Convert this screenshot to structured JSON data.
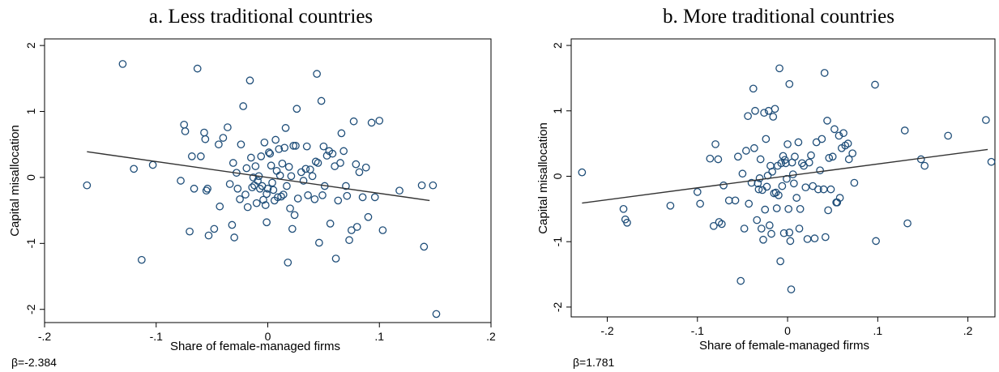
{
  "colors": {
    "marker": "#1f4e79",
    "fit_line": "#333333",
    "axis": "#000000"
  },
  "chart_data": [
    {
      "type": "scatter",
      "title": "a. Less traditional countries",
      "xlabel": "Share of female-managed firms",
      "ylabel": "Capital misallocation",
      "annotation": "β=-2.384",
      "xlim": [
        -0.2,
        0.2
      ],
      "ylim": [
        -2.2,
        2.1
      ],
      "xticks": [
        -0.2,
        -0.1,
        0,
        0.1,
        0.2
      ],
      "xtick_labels": [
        "-.2",
        "-.1",
        "0",
        ".1",
        ".2"
      ],
      "yticks": [
        -2,
        -1,
        0,
        1,
        2
      ],
      "ytick_labels": [
        "-2",
        "-1",
        "0",
        "1",
        "2"
      ],
      "grid": false,
      "fit_line": {
        "x": [
          -0.162,
          0.145
        ],
        "y": [
          0.39,
          -0.35
        ]
      },
      "points": [
        [
          -0.162,
          -0.12
        ],
        [
          -0.13,
          1.72
        ],
        [
          -0.12,
          0.13
        ],
        [
          -0.113,
          -1.25
        ],
        [
          -0.103,
          0.19
        ],
        [
          -0.078,
          -0.05
        ],
        [
          -0.075,
          0.8
        ],
        [
          -0.074,
          0.7
        ],
        [
          -0.07,
          -0.82
        ],
        [
          -0.068,
          0.32
        ],
        [
          -0.066,
          -0.17
        ],
        [
          -0.063,
          1.65
        ],
        [
          -0.06,
          0.32
        ],
        [
          -0.057,
          0.68
        ],
        [
          -0.056,
          0.58
        ],
        [
          -0.055,
          -0.2
        ],
        [
          -0.054,
          -0.17
        ],
        [
          -0.053,
          -0.88
        ],
        [
          -0.048,
          -0.78
        ],
        [
          -0.044,
          0.5
        ],
        [
          -0.043,
          -0.44
        ],
        [
          -0.04,
          0.6
        ],
        [
          -0.036,
          0.76
        ],
        [
          -0.034,
          -0.1
        ],
        [
          -0.032,
          -0.72
        ],
        [
          -0.031,
          0.22
        ],
        [
          -0.03,
          -0.91
        ],
        [
          -0.028,
          0.07
        ],
        [
          -0.027,
          -0.17
        ],
        [
          -0.025,
          -0.33
        ],
        [
          -0.024,
          0.5
        ],
        [
          -0.022,
          1.08
        ],
        [
          -0.02,
          -0.26
        ],
        [
          -0.019,
          0.14
        ],
        [
          -0.018,
          -0.45
        ],
        [
          -0.016,
          1.47
        ],
        [
          -0.015,
          0.3
        ],
        [
          -0.014,
          -0.15
        ],
        [
          -0.013,
          0
        ],
        [
          -0.012,
          -0.12
        ],
        [
          -0.011,
          0.17
        ],
        [
          -0.01,
          -0.39
        ],
        [
          -0.009,
          -0.05
        ],
        [
          -0.008,
          0.02
        ],
        [
          -0.007,
          -0.17
        ],
        [
          -0.006,
          0.32
        ],
        [
          -0.005,
          -0.13
        ],
        [
          -0.004,
          -0.34
        ],
        [
          -0.003,
          0.53
        ],
        [
          -0.002,
          -0.42
        ],
        [
          -0.001,
          -0.25
        ],
        [
          -0.001,
          -0.68
        ],
        [
          0,
          -0.17
        ],
        [
          0.001,
          0.38
        ],
        [
          0.002,
          0.36
        ],
        [
          0.003,
          0.18
        ],
        [
          0.004,
          -0.08
        ],
        [
          0.005,
          -0.19
        ],
        [
          0.006,
          -0.35
        ],
        [
          0.007,
          0.57
        ],
        [
          0.008,
          0.1
        ],
        [
          0.009,
          -0.3
        ],
        [
          0.01,
          0.43
        ],
        [
          0.011,
          0.03
        ],
        [
          0.012,
          -0.29
        ],
        [
          0.013,
          0.21
        ],
        [
          0.014,
          -0.26
        ],
        [
          0.015,
          0.45
        ],
        [
          0.016,
          0.75
        ],
        [
          0.017,
          -0.13
        ],
        [
          0.018,
          -1.29
        ],
        [
          0.019,
          0.16
        ],
        [
          0.02,
          -0.47
        ],
        [
          0.021,
          0.02
        ],
        [
          0.022,
          -0.78
        ],
        [
          0.023,
          0.48
        ],
        [
          0.024,
          -0.57
        ],
        [
          0.025,
          0.48
        ],
        [
          0.026,
          1.04
        ],
        [
          0.027,
          -0.32
        ],
        [
          0.03,
          0.08
        ],
        [
          0.032,
          -0.05
        ],
        [
          0.034,
          0.13
        ],
        [
          0.035,
          0.47
        ],
        [
          0.036,
          -0.27
        ],
        [
          0.038,
          0.12
        ],
        [
          0.04,
          0.02
        ],
        [
          0.042,
          -0.33
        ],
        [
          0.043,
          0.24
        ],
        [
          0.044,
          1.57
        ],
        [
          0.045,
          0.22
        ],
        [
          0.046,
          -0.99
        ],
        [
          0.048,
          1.16
        ],
        [
          0.049,
          -0.27
        ],
        [
          0.05,
          0.47
        ],
        [
          0.051,
          -0.13
        ],
        [
          0.053,
          0.33
        ],
        [
          0.055,
          0.4
        ],
        [
          0.056,
          -0.7
        ],
        [
          0.058,
          0.36
        ],
        [
          0.06,
          0.17
        ],
        [
          0.061,
          -1.23
        ],
        [
          0.063,
          -0.35
        ],
        [
          0.065,
          0.22
        ],
        [
          0.066,
          0.67
        ],
        [
          0.068,
          0.4
        ],
        [
          0.07,
          -0.13
        ],
        [
          0.071,
          -0.28
        ],
        [
          0.073,
          -0.95
        ],
        [
          0.075,
          -0.8
        ],
        [
          0.077,
          0.85
        ],
        [
          0.079,
          0.2
        ],
        [
          0.08,
          -0.75
        ],
        [
          0.082,
          0.08
        ],
        [
          0.085,
          -0.3
        ],
        [
          0.088,
          0.15
        ],
        [
          0.09,
          -0.6
        ],
        [
          0.093,
          0.83
        ],
        [
          0.096,
          -0.3
        ],
        [
          0.1,
          0.86
        ],
        [
          0.103,
          -0.8
        ],
        [
          0.118,
          -0.2
        ],
        [
          0.138,
          -0.12
        ],
        [
          0.14,
          -1.05
        ],
        [
          0.148,
          -0.12
        ],
        [
          0.151,
          -2.07
        ]
      ]
    },
    {
      "type": "scatter",
      "title": "b. More traditional countries",
      "xlabel": "Share of female-managed firms",
      "ylabel": "Capital misallocation",
      "annotation": "β=1.781",
      "xlim": [
        -0.24,
        0.23
      ],
      "ylim": [
        -2.15,
        2.1
      ],
      "xticks": [
        -0.2,
        -0.1,
        0,
        0.1,
        0.2
      ],
      "xtick_labels": [
        "-.2",
        "-.1",
        "0",
        ".1",
        ".2"
      ],
      "yticks": [
        -2,
        -1,
        0,
        1,
        2
      ],
      "ytick_labels": [
        "-2",
        "-1",
        "0",
        "1",
        "2"
      ],
      "grid": false,
      "fit_line": {
        "x": [
          -0.228,
          0.222
        ],
        "y": [
          -0.41,
          0.41
        ]
      },
      "points": [
        [
          -0.228,
          0.06
        ],
        [
          -0.182,
          -0.5
        ],
        [
          -0.18,
          -0.66
        ],
        [
          -0.178,
          -0.71
        ],
        [
          -0.13,
          -0.45
        ],
        [
          -0.1,
          -0.24
        ],
        [
          -0.097,
          -0.42
        ],
        [
          -0.086,
          0.27
        ],
        [
          -0.082,
          -0.76
        ],
        [
          -0.08,
          0.49
        ],
        [
          -0.077,
          0.26
        ],
        [
          -0.076,
          -0.7
        ],
        [
          -0.073,
          -0.73
        ],
        [
          -0.071,
          -0.14
        ],
        [
          -0.065,
          -0.37
        ],
        [
          -0.058,
          -0.37
        ],
        [
          -0.055,
          0.3
        ],
        [
          -0.052,
          -1.6
        ],
        [
          -0.05,
          0.04
        ],
        [
          -0.048,
          -0.8
        ],
        [
          -0.046,
          0.39
        ],
        [
          -0.044,
          0.92
        ],
        [
          -0.043,
          -0.42
        ],
        [
          -0.04,
          -0.1
        ],
        [
          -0.038,
          1.34
        ],
        [
          -0.037,
          0.43
        ],
        [
          -0.036,
          1.0
        ],
        [
          -0.034,
          -0.67
        ],
        [
          -0.033,
          -0.11
        ],
        [
          -0.032,
          -0.2
        ],
        [
          -0.031,
          -0.03
        ],
        [
          -0.03,
          0.26
        ],
        [
          -0.029,
          -0.8
        ],
        [
          -0.028,
          -0.21
        ],
        [
          -0.027,
          -0.97
        ],
        [
          -0.026,
          0.97
        ],
        [
          -0.025,
          -0.51
        ],
        [
          -0.024,
          0.57
        ],
        [
          -0.023,
          -0.16
        ],
        [
          -0.022,
          0.01
        ],
        [
          -0.021,
          1.0
        ],
        [
          -0.02,
          -0.75
        ],
        [
          -0.019,
          0.16
        ],
        [
          -0.018,
          -0.88
        ],
        [
          -0.017,
          0.07
        ],
        [
          -0.016,
          0.91
        ],
        [
          -0.015,
          -0.26
        ],
        [
          -0.014,
          1.03
        ],
        [
          -0.013,
          -0.25
        ],
        [
          -0.012,
          -0.49
        ],
        [
          -0.011,
          0.16
        ],
        [
          -0.01,
          -0.29
        ],
        [
          -0.009,
          1.65
        ],
        [
          -0.008,
          -1.3
        ],
        [
          -0.007,
          0.2
        ],
        [
          -0.006,
          -0.15
        ],
        [
          -0.005,
          0.31
        ],
        [
          -0.004,
          -0.87
        ],
        [
          -0.003,
          0.25
        ],
        [
          -0.002,
          0.2
        ],
        [
          -0.001,
          -0.04
        ],
        [
          0,
          0.49
        ],
        [
          0.001,
          -0.5
        ],
        [
          0.002,
          1.41
        ],
        [
          0.002,
          -0.86
        ],
        [
          0.003,
          -0.99
        ],
        [
          0.004,
          -1.73
        ],
        [
          0.005,
          0.21
        ],
        [
          0.006,
          0.03
        ],
        [
          0.007,
          -0.11
        ],
        [
          0.008,
          0.3
        ],
        [
          0.01,
          -0.33
        ],
        [
          0.012,
          0.52
        ],
        [
          0.013,
          -0.8
        ],
        [
          0.014,
          -0.5
        ],
        [
          0.016,
          0.2
        ],
        [
          0.018,
          0.16
        ],
        [
          0.02,
          -0.17
        ],
        [
          0.022,
          -0.96
        ],
        [
          0.024,
          0.21
        ],
        [
          0.026,
          0.32
        ],
        [
          0.028,
          -0.15
        ],
        [
          0.03,
          -0.95
        ],
        [
          0.032,
          0.52
        ],
        [
          0.034,
          -0.2
        ],
        [
          0.036,
          0.09
        ],
        [
          0.038,
          0.57
        ],
        [
          0.04,
          -0.2
        ],
        [
          0.041,
          1.58
        ],
        [
          0.042,
          -0.93
        ],
        [
          0.044,
          0.85
        ],
        [
          0.045,
          -0.52
        ],
        [
          0.046,
          0.28
        ],
        [
          0.048,
          -0.2
        ],
        [
          0.05,
          0.3
        ],
        [
          0.052,
          0.72
        ],
        [
          0.054,
          -0.4
        ],
        [
          0.055,
          -0.4
        ],
        [
          0.057,
          0.62
        ],
        [
          0.058,
          -0.33
        ],
        [
          0.06,
          0.43
        ],
        [
          0.062,
          0.66
        ],
        [
          0.064,
          0.47
        ],
        [
          0.067,
          0.5
        ],
        [
          0.068,
          0.26
        ],
        [
          0.072,
          0.35
        ],
        [
          0.074,
          -0.1
        ],
        [
          0.097,
          1.4
        ],
        [
          0.098,
          -0.99
        ],
        [
          0.13,
          0.7
        ],
        [
          0.133,
          -0.72
        ],
        [
          0.148,
          0.26
        ],
        [
          0.152,
          0.16
        ],
        [
          0.178,
          0.62
        ],
        [
          0.22,
          0.86
        ],
        [
          0.226,
          0.22
        ]
      ]
    }
  ]
}
